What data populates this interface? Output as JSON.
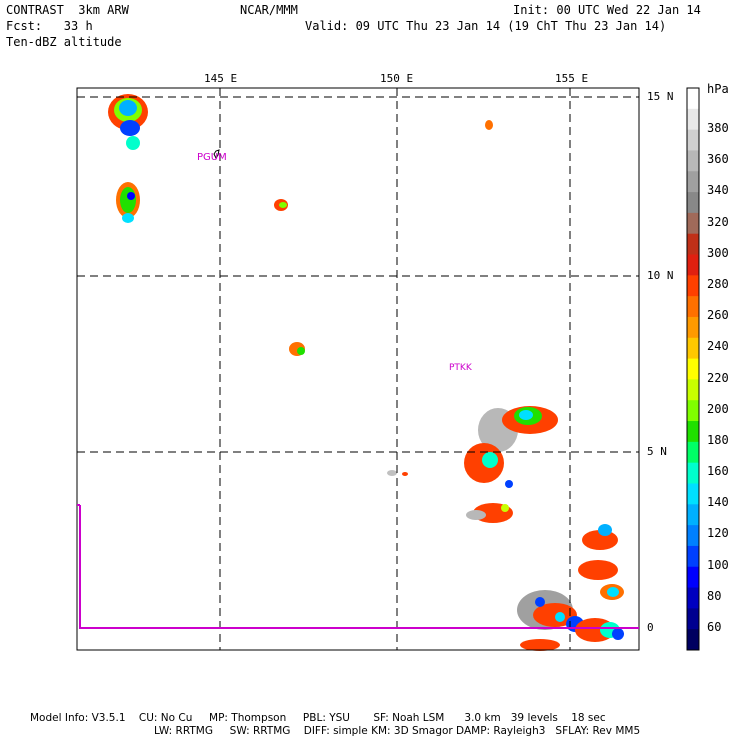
{
  "header": {
    "model": "CONTRAST  3km ARW",
    "org": "NCAR/MMM",
    "init": "Init: 00 UTC Wed 22 Jan 14",
    "fcst": "Fcst:   33 h",
    "valid": "Valid: 09 UTC Thu 23 Jan 14 (19 ChT Thu 23 Jan 14)",
    "field": "Ten-dBZ altitude"
  },
  "map": {
    "lon_labels": [
      "145 E",
      "150 E",
      "155 E"
    ],
    "lat_labels": [
      "15 N",
      "10 N",
      "5 N",
      "0"
    ],
    "stations": [
      "PGUM",
      "PTKK"
    ],
    "colors": {
      "grid": "#000000",
      "station": "#cc00cc",
      "equator": "#cc00cc"
    }
  },
  "colorbar": {
    "unit": "hPa",
    "labels": [
      "380",
      "360",
      "340",
      "320",
      "300",
      "280",
      "260",
      "240",
      "220",
      "200",
      "180",
      "160",
      "140",
      "120",
      "100",
      "80",
      "60"
    ],
    "colors": [
      "#ffffff",
      "#e8e8e8",
      "#d0d0d0",
      "#b8b8b8",
      "#a0a0a0",
      "#888888",
      "#a06a5a",
      "#c03018",
      "#e02010",
      "#ff4000",
      "#ff7000",
      "#ff9a00",
      "#ffc800",
      "#ffff00",
      "#c8ff00",
      "#80ff00",
      "#20e000",
      "#00ff66",
      "#00ffcc",
      "#00e0ff",
      "#00b0ff",
      "#0080ff",
      "#0040ff",
      "#0000ff",
      "#0000c0",
      "#000090",
      "#000060"
    ]
  },
  "footer": {
    "line1": "Model Info: V3.5.1    CU: No Cu     MP: Thompson     PBL: YSU       SF: Noah LSM      3.0 km   39 levels    18 sec",
    "line2": "LW: RRTMG     SW: RRTMG    DIFF: simple KM: 3D Smagor DAMP: Rayleigh3   SFLAY: Rev MM5"
  }
}
